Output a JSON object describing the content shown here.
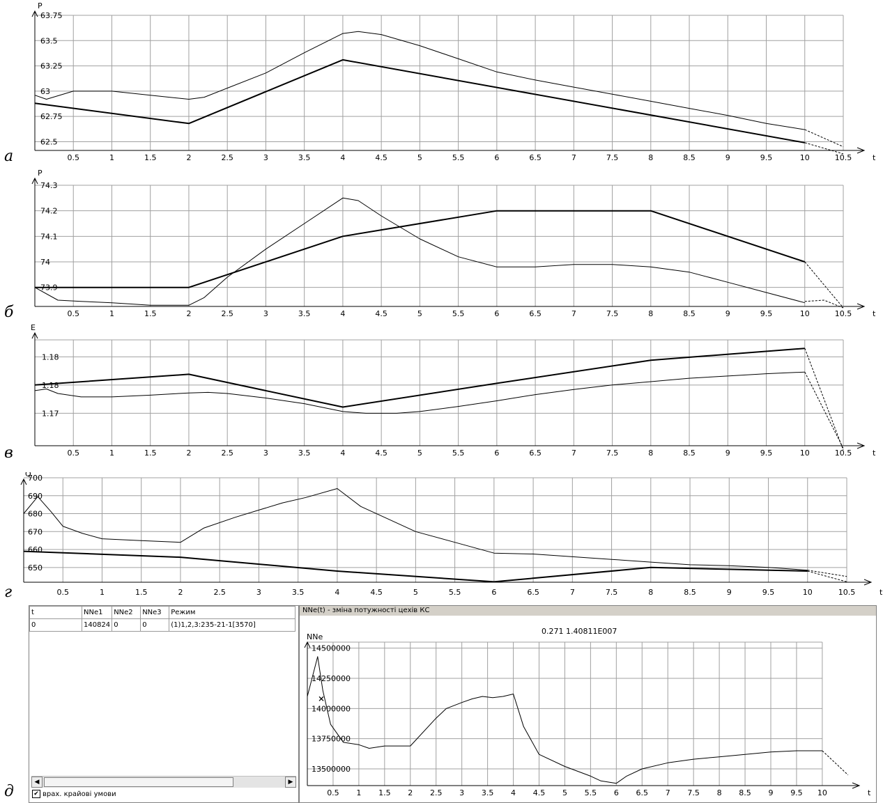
{
  "panel_labels": [
    "а",
    "б",
    "в",
    "г",
    "д"
  ],
  "chart_data": [
    {
      "type": "line",
      "ylabel": "P",
      "xlabel": "t",
      "xlim": [
        0,
        10.5
      ],
      "ylim": [
        62.4,
        63.75
      ],
      "xticks": [
        0.5,
        1,
        1.5,
        2,
        2.5,
        3,
        3.5,
        4,
        4.5,
        5,
        5.5,
        6,
        6.5,
        7,
        7.5,
        8,
        8.5,
        9,
        9.5,
        10,
        10.5
      ],
      "xtick_labels": [
        "0.5",
        "1",
        "1.5",
        "2",
        "2.5",
        "3",
        "3.5",
        "4",
        "4.5",
        "5",
        "5.5",
        "6",
        "6.5",
        "7",
        "7.5",
        "8",
        "8.5",
        "9",
        "9.5",
        "10",
        "10.5"
      ],
      "yticks": [
        62.5,
        62.75,
        63,
        63.25,
        63.5,
        63.75
      ],
      "ytick_labels": [
        "62.5",
        "62.75",
        "63",
        "63.25",
        "63.5",
        "63.75"
      ],
      "grid": true,
      "series": [
        {
          "style": "thick",
          "x": [
            0,
            2,
            4,
            10
          ],
          "y": [
            62.88,
            62.68,
            63.31,
            62.49
          ]
        },
        {
          "style": "thin",
          "x": [
            0,
            0.15,
            0.5,
            1,
            1.5,
            2,
            2.2,
            2.5,
            3,
            3.5,
            4,
            4.2,
            4.5,
            5,
            5.5,
            6,
            6.5,
            7,
            7.5,
            8,
            8.5,
            9,
            9.5,
            10
          ],
          "y": [
            62.96,
            62.92,
            63.0,
            63.0,
            62.96,
            62.92,
            62.94,
            63.03,
            63.18,
            63.38,
            63.57,
            63.59,
            63.56,
            63.45,
            63.32,
            63.19,
            63.11,
            63.04,
            62.97,
            62.9,
            62.83,
            62.76,
            62.68,
            62.62
          ]
        },
        {
          "style": "dashed",
          "x": [
            10,
            10.5
          ],
          "y": [
            62.49,
            62.38
          ]
        },
        {
          "style": "dashed",
          "x": [
            10,
            10.5
          ],
          "y": [
            62.62,
            62.45
          ]
        }
      ]
    },
    {
      "type": "line",
      "ylabel": "P",
      "xlabel": "t",
      "xlim": [
        0,
        10.5
      ],
      "ylim": [
        73.82,
        74.3
      ],
      "xticks": [
        0.5,
        1,
        1.5,
        2,
        2.5,
        3,
        3.5,
        4,
        4.5,
        5,
        5.5,
        6,
        6.5,
        7,
        7.5,
        8,
        8.5,
        9,
        9.5,
        10,
        10.5
      ],
      "xtick_labels": [
        "0.5",
        "1",
        "1.5",
        "2",
        "2.5",
        "3",
        "3.5",
        "4",
        "4.5",
        "5",
        "5.5",
        "6",
        "6.5",
        "7",
        "7.5",
        "8",
        "8.5",
        "9",
        "9.5",
        "10",
        "10.5"
      ],
      "yticks": [
        73.9,
        74,
        74.1,
        74.2,
        74.3
      ],
      "ytick_labels": [
        "73.9",
        "74",
        "74.1",
        "74.2",
        "74.3"
      ],
      "grid": true,
      "series": [
        {
          "style": "thick",
          "x": [
            0,
            2,
            4,
            6,
            8,
            10
          ],
          "y": [
            73.9,
            73.9,
            74.1,
            74.2,
            74.2,
            74.0
          ]
        },
        {
          "style": "thin",
          "x": [
            0,
            0.3,
            0.6,
            1,
            1.5,
            2,
            2.2,
            2.5,
            3,
            3.5,
            4,
            4.2,
            4.5,
            5,
            5.5,
            6,
            6.5,
            7,
            7.5,
            8,
            8.5,
            9,
            9.5,
            10
          ],
          "y": [
            73.9,
            73.85,
            73.845,
            73.84,
            73.83,
            73.83,
            73.86,
            73.94,
            74.05,
            74.15,
            74.25,
            74.24,
            74.18,
            74.09,
            74.02,
            73.98,
            73.98,
            73.99,
            73.99,
            73.98,
            73.96,
            73.92,
            73.88,
            73.84
          ]
        },
        {
          "style": "dashed",
          "x": [
            10,
            10.5
          ],
          "y": [
            74.0,
            73.82
          ]
        },
        {
          "style": "dashed",
          "x": [
            10,
            10.25,
            10.5
          ],
          "y": [
            73.845,
            73.85,
            73.82
          ]
        }
      ]
    },
    {
      "type": "line",
      "ylabel": "E",
      "xlabel": "t",
      "xlim": [
        0,
        10.5
      ],
      "ylim": [
        1.164,
        1.183
      ],
      "xticks": [
        0.5,
        1,
        1.5,
        2,
        2.5,
        3,
        3.5,
        4,
        4.5,
        5,
        5.5,
        6,
        6.5,
        7,
        7.5,
        8,
        8.5,
        9,
        9.5,
        10,
        10.5
      ],
      "xtick_labels": [
        "0.5",
        "1",
        "1.5",
        "2",
        "2.5",
        "3",
        "3.5",
        "4",
        "4.5",
        "5",
        "5.5",
        "6",
        "6.5",
        "7",
        "7.5",
        "8",
        "8.5",
        "9",
        "9.5",
        "10",
        "10.5"
      ],
      "yticks": [
        1.17,
        1.175,
        1.18
      ],
      "ytick_labels": [
        "1.17",
        "1.18",
        "1.18"
      ],
      "grid": true,
      "series": [
        {
          "style": "thick",
          "x": [
            0,
            2,
            4,
            6,
            8,
            10
          ],
          "y": [
            1.175,
            1.1769,
            1.1711,
            1.1753,
            1.1794,
            1.1815
          ]
        },
        {
          "style": "thin",
          "x": [
            0,
            0.15,
            0.3,
            0.6,
            1,
            1.5,
            2,
            2.25,
            2.5,
            3,
            3.5,
            4,
            4.3,
            4.7,
            5,
            5.5,
            6,
            6.5,
            7,
            7.5,
            8,
            8.5,
            9,
            9.5,
            10
          ],
          "y": [
            1.174,
            1.1743,
            1.1735,
            1.1729,
            1.1729,
            1.1732,
            1.1736,
            1.1737,
            1.1735,
            1.1727,
            1.1717,
            1.1703,
            1.17,
            1.17,
            1.1703,
            1.1712,
            1.1722,
            1.1733,
            1.1742,
            1.175,
            1.1756,
            1.1762,
            1.1766,
            1.177,
            1.1773
          ]
        },
        {
          "style": "dashed",
          "x": [
            10,
            10.5
          ],
          "y": [
            1.1815,
            1.1635
          ]
        },
        {
          "style": "dashed",
          "x": [
            10,
            10.5
          ],
          "y": [
            1.1773,
            1.1638
          ]
        }
      ]
    },
    {
      "type": "line",
      "ylabel": "Q",
      "xlabel": "t",
      "xlim": [
        0,
        10.5
      ],
      "ylim": [
        641,
        700
      ],
      "xticks": [
        0.5,
        1,
        1.5,
        2,
        2.5,
        3,
        3.5,
        4,
        4.5,
        5,
        5.5,
        6,
        6.5,
        7,
        7.5,
        8,
        8.5,
        9,
        9.5,
        10,
        10.5
      ],
      "xtick_labels": [
        "0.5",
        "1",
        "1.5",
        "2",
        "2.5",
        "3",
        "3.5",
        "4",
        "4.5",
        "5",
        "5.5",
        "6",
        "6.5",
        "7",
        "7.5",
        "8",
        "8.5",
        "9",
        "9.5",
        "10",
        "10.5"
      ],
      "yticks": [
        650,
        660,
        670,
        680,
        690,
        700
      ],
      "ytick_labels": [
        "650",
        "660",
        "670",
        "680",
        "690",
        "700"
      ],
      "grid": true,
      "series": [
        {
          "style": "thick",
          "x": [
            0,
            2,
            4,
            6,
            8,
            10
          ],
          "y": [
            659,
            655.7,
            648,
            642,
            650,
            648
          ]
        },
        {
          "style": "thin",
          "x": [
            0,
            0.18,
            0.35,
            0.5,
            0.75,
            1,
            1.5,
            2,
            2.3,
            2.7,
            3,
            3.3,
            3.6,
            4,
            4.3,
            4.7,
            5,
            5.5,
            6,
            6.5,
            7,
            7.5,
            8,
            8.5,
            9,
            9.5,
            10
          ],
          "y": [
            680,
            689.5,
            681,
            673,
            669,
            666,
            665,
            664,
            672,
            678,
            682,
            686,
            689,
            694,
            684,
            676,
            670,
            664,
            658,
            657.5,
            656,
            654.5,
            653,
            651.5,
            651,
            650,
            648.5
          ]
        },
        {
          "style": "dashed",
          "x": [
            10,
            10.5
          ],
          "y": [
            648,
            642
          ]
        },
        {
          "style": "dashed",
          "x": [
            10,
            10.5
          ],
          "y": [
            648.5,
            645
          ]
        }
      ]
    },
    {
      "type": "line",
      "ylabel": "NNe",
      "xlabel": "t",
      "title": "0.271 1.40811E007",
      "xlim": [
        0,
        10.8
      ],
      "ylim": [
        13350000,
        14550000
      ],
      "xticks": [
        0.5,
        1,
        1.5,
        2,
        2.5,
        3,
        3.5,
        4,
        4.5,
        5,
        5.5,
        6,
        6.5,
        7,
        7.5,
        8,
        8.5,
        9,
        9.5,
        10
      ],
      "xtick_labels": [
        "0.5",
        "1",
        "1.5",
        "2",
        "2.5",
        "3",
        "3.5",
        "4",
        "4.5",
        "5",
        "5.5",
        "6",
        "6.5",
        "7",
        "7.5",
        "8",
        "8.5",
        "9",
        "9.5",
        "10"
      ],
      "yticks": [
        13500000,
        13750000,
        14000000,
        14250000,
        14500000
      ],
      "ytick_labels": [
        "13500000",
        "13750000",
        "14000000",
        "14250000",
        "14500000"
      ],
      "grid": true,
      "cursor": {
        "x": 0.271,
        "y": 14081100
      },
      "series": [
        {
          "style": "thin",
          "x": [
            0,
            0.2,
            0.3,
            0.45,
            0.7,
            1,
            1.2,
            1.5,
            2,
            2.5,
            2.7,
            3,
            3.2,
            3.4,
            3.6,
            3.8,
            4,
            4.2,
            4.5,
            5,
            5.5,
            5.7,
            6,
            6.2,
            6.5,
            7,
            7.5,
            8,
            8.5,
            9,
            9.5,
            10
          ],
          "y": [
            14100000,
            14430000,
            14150000,
            13870000,
            13720000,
            13700000,
            13670000,
            13690000,
            13690000,
            13920000,
            14000000,
            14050000,
            14080000,
            14100000,
            14090000,
            14100000,
            14120000,
            13850000,
            13620000,
            13520000,
            13440000,
            13400000,
            13380000,
            13440000,
            13500000,
            13550000,
            13580000,
            13600000,
            13620000,
            13640000,
            13650000,
            13650000
          ]
        },
        {
          "style": "dashed",
          "x": [
            10,
            10.5
          ],
          "y": [
            13650000,
            13450000
          ]
        }
      ]
    }
  ],
  "table": {
    "columns": [
      "t",
      "NNe1",
      "NNe2",
      "NNe3",
      "Режим"
    ],
    "rows": [
      [
        "0",
        "140824",
        "0",
        "0",
        "(1)1,2,3:235-21-1[3570]"
      ]
    ],
    "checkbox_label": "врах. крайові умови",
    "checkbox_checked": true
  },
  "nne_panel": {
    "header": "NNe(t) - зміна потужності цехів КС"
  }
}
